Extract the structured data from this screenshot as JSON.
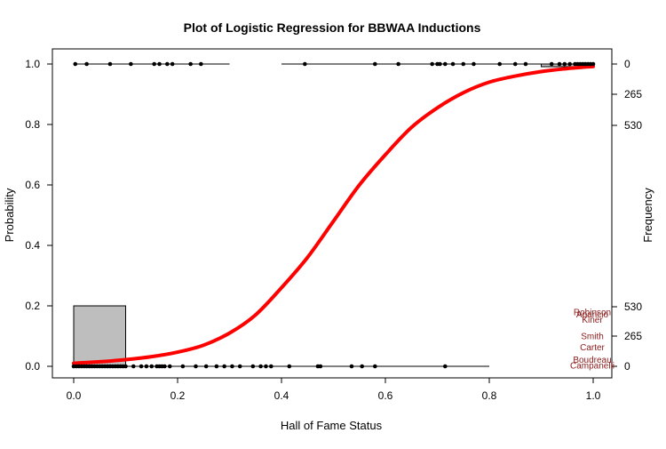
{
  "chart_data": {
    "type": "scatter",
    "title": "Plot of Logistic Regression for BBWAA Inductions",
    "xlabel": "Hall of Fame Status",
    "ylabel": "Probability",
    "y2label": "Frequency",
    "xlim": [
      0,
      1
    ],
    "ylim": [
      0,
      1
    ],
    "x_ticks": [
      "0.0",
      "0.2",
      "0.4",
      "0.6",
      "0.8",
      "1.0"
    ],
    "y_ticks": [
      "0.0",
      "0.2",
      "0.4",
      "0.6",
      "0.8",
      "1.0"
    ],
    "y2_ticks_bottom": [
      "0",
      "265",
      "530"
    ],
    "y2_ticks_top": [
      "0",
      "265",
      "530"
    ],
    "grid": false,
    "colors": {
      "curve": "#ff0000",
      "points": "#000000",
      "hist_fill": "#bebebe",
      "labels": "#8b1a1a"
    },
    "logistic_curve": {
      "x": [
        0.0,
        0.05,
        0.1,
        0.15,
        0.2,
        0.25,
        0.3,
        0.35,
        0.4,
        0.45,
        0.5,
        0.55,
        0.6,
        0.65,
        0.7,
        0.75,
        0.8,
        0.85,
        0.9,
        0.95,
        1.0
      ],
      "y": [
        0.01,
        0.015,
        0.022,
        0.032,
        0.047,
        0.07,
        0.11,
        0.17,
        0.26,
        0.36,
        0.48,
        0.6,
        0.7,
        0.79,
        0.855,
        0.905,
        0.94,
        0.96,
        0.975,
        0.985,
        0.992
      ]
    },
    "histogram_bottom": {
      "bins": [
        [
          0.0,
          0.1
        ],
        [
          0.1,
          0.2
        ]
      ],
      "heights": [
        0.2,
        0.0
      ]
    },
    "histogram_top": {
      "bins": [
        [
          0.9,
          1.0
        ]
      ],
      "heights": [
        0.0
      ]
    },
    "points_y1": [
      0.003,
      0.025,
      0.07,
      0.11,
      0.155,
      0.165,
      0.18,
      0.19,
      0.225,
      0.245,
      0.445,
      0.58,
      0.625,
      0.69,
      0.7,
      0.705,
      0.715,
      0.73,
      0.75,
      0.77,
      0.82,
      0.85,
      0.87,
      0.92,
      0.935,
      0.945,
      0.955,
      0.965,
      0.97,
      0.975,
      0.98,
      0.985,
      0.99,
      0.995,
      1.0
    ],
    "points_y0": [
      0.0,
      0.005,
      0.01,
      0.015,
      0.02,
      0.025,
      0.03,
      0.035,
      0.04,
      0.045,
      0.05,
      0.055,
      0.06,
      0.065,
      0.07,
      0.075,
      0.08,
      0.085,
      0.09,
      0.095,
      0.1,
      0.115,
      0.13,
      0.14,
      0.15,
      0.16,
      0.165,
      0.17,
      0.175,
      0.185,
      0.21,
      0.235,
      0.255,
      0.275,
      0.29,
      0.305,
      0.32,
      0.345,
      0.36,
      0.37,
      0.38,
      0.415,
      0.47,
      0.475,
      0.535,
      0.555,
      0.58,
      0.715
    ],
    "spans_y1": [
      [
        0.0,
        0.3
      ],
      [
        0.4,
        0.63
      ],
      [
        0.6,
        1.0
      ]
    ],
    "spans_y0": [
      [
        0.0,
        0.8
      ]
    ],
    "annotations": [
      {
        "text": "Robinson",
        "y": 0.178
      },
      {
        "text": "Aparicio",
        "y": 0.17
      },
      {
        "text": "Kiner",
        "y": 0.153
      },
      {
        "text": "Smith",
        "y": 0.098
      },
      {
        "text": "Carter",
        "y": 0.062
      },
      {
        "text": "Boudreau",
        "y": 0.02
      },
      {
        "text": "Campanelli",
        "y": 0.002
      }
    ]
  }
}
